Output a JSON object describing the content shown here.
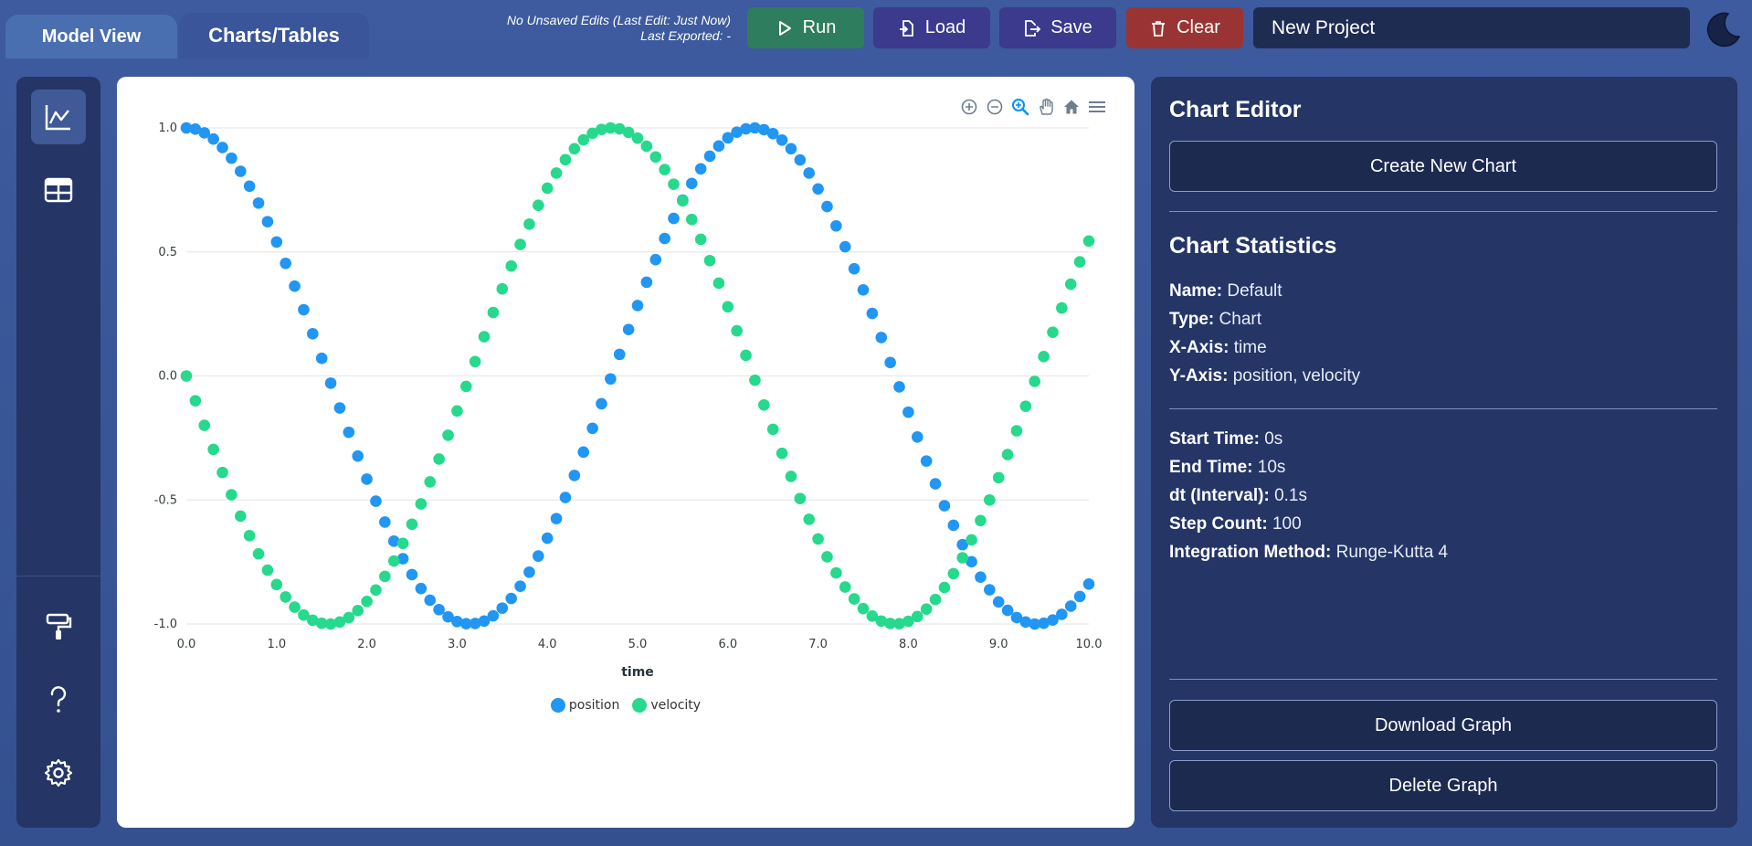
{
  "tabs": [
    {
      "label": "Model View"
    },
    {
      "label": "Charts/Tables"
    }
  ],
  "edit_status": {
    "line1": "No Unsaved Edits (Last Edit: Just Now)",
    "line2": "Last Exported: -"
  },
  "toolbar": {
    "run_label": "Run",
    "load_label": "Load",
    "save_label": "Save",
    "clear_label": "Clear"
  },
  "project": {
    "name": "New Project"
  },
  "colors": {
    "position": "#2196f3",
    "velocity": "#26d98c",
    "run": "#2e7d5e",
    "load": "#3b3a8c",
    "save": "#3b3a8c",
    "clear": "#9a3434"
  },
  "sidebar_icons": [
    "chart-line-icon",
    "table-icon",
    "paint-roller-icon",
    "help-icon",
    "gear-icon"
  ],
  "chart_toolbar_icons": [
    "zoom-in-icon",
    "zoom-out-icon",
    "zoom-select-icon",
    "pan-icon",
    "reset-home-icon",
    "menu-icon"
  ],
  "chart_data": {
    "type": "scatter",
    "title": "",
    "xlabel": "time",
    "ylabel": "",
    "xlim": [
      0,
      10
    ],
    "ylim": [
      -1,
      1
    ],
    "x_ticks": [
      "0.0",
      "1.0",
      "2.0",
      "3.0",
      "4.0",
      "5.0",
      "6.0",
      "7.0",
      "8.0",
      "9.0",
      "10.0"
    ],
    "y_ticks": [
      "1.0",
      "0.5",
      "0.0",
      "-0.5",
      "-1.0"
    ],
    "grid": "horizontal",
    "legend": "bottom-center",
    "x": [
      0.0,
      0.1,
      0.2,
      0.3,
      0.4,
      0.5,
      0.6,
      0.7,
      0.8,
      0.9,
      1.0,
      1.1,
      1.2,
      1.3,
      1.4,
      1.5,
      1.6,
      1.7,
      1.8,
      1.9,
      2.0,
      2.1,
      2.2,
      2.3,
      2.4,
      2.5,
      2.6,
      2.7,
      2.8,
      2.9,
      3.0,
      3.1,
      3.2,
      3.3,
      3.4,
      3.5,
      3.6,
      3.7,
      3.8,
      3.9,
      4.0,
      4.1,
      4.2,
      4.3,
      4.4,
      4.5,
      4.6,
      4.7,
      4.8,
      4.9,
      5.0,
      5.1,
      5.2,
      5.3,
      5.4,
      5.5,
      5.6,
      5.7,
      5.8,
      5.9,
      6.0,
      6.1,
      6.2,
      6.3,
      6.4,
      6.5,
      6.6,
      6.7,
      6.8,
      6.9,
      7.0,
      7.1,
      7.2,
      7.3,
      7.4,
      7.5,
      7.6,
      7.7,
      7.8,
      7.9,
      8.0,
      8.1,
      8.2,
      8.3,
      8.4,
      8.5,
      8.6,
      8.7,
      8.8,
      8.9,
      9.0,
      9.1,
      9.2,
      9.3,
      9.4,
      9.5,
      9.6,
      9.7,
      9.8,
      9.9,
      10.0
    ],
    "series": [
      {
        "name": "position",
        "values": [
          1.0,
          0.995,
          0.98,
          0.955,
          0.921,
          0.878,
          0.825,
          0.765,
          0.697,
          0.622,
          0.54,
          0.454,
          0.362,
          0.267,
          0.17,
          0.071,
          -0.029,
          -0.129,
          -0.227,
          -0.323,
          -0.416,
          -0.505,
          -0.589,
          -0.666,
          -0.737,
          -0.801,
          -0.857,
          -0.904,
          -0.942,
          -0.971,
          -0.99,
          -0.999,
          -0.998,
          -0.988,
          -0.967,
          -0.936,
          -0.897,
          -0.848,
          -0.791,
          -0.726,
          -0.654,
          -0.575,
          -0.49,
          -0.401,
          -0.307,
          -0.211,
          -0.112,
          -0.012,
          0.087,
          0.187,
          0.284,
          0.378,
          0.469,
          0.554,
          0.635,
          0.709,
          0.776,
          0.835,
          0.886,
          0.927,
          0.96,
          0.983,
          0.996,
          1.0,
          0.993,
          0.977,
          0.951,
          0.916,
          0.871,
          0.818,
          0.754,
          0.683,
          0.605,
          0.521,
          0.432,
          0.347,
          0.252,
          0.155,
          0.054,
          -0.044,
          -0.146,
          -0.246,
          -0.343,
          -0.435,
          -0.523,
          -0.602,
          -0.68,
          -0.749,
          -0.811,
          -0.862,
          -0.911,
          -0.945,
          -0.974,
          -0.992,
          -1.0,
          -0.997,
          -0.984,
          -0.961,
          -0.928,
          -0.889,
          -0.839
        ]
      },
      {
        "name": "velocity",
        "values": [
          0.0,
          -0.1,
          -0.199,
          -0.296,
          -0.389,
          -0.479,
          -0.565,
          -0.644,
          -0.717,
          -0.783,
          -0.841,
          -0.891,
          -0.932,
          -0.964,
          -0.985,
          -0.997,
          -1.0,
          -0.992,
          -0.974,
          -0.946,
          -0.909,
          -0.863,
          -0.808,
          -0.746,
          -0.675,
          -0.598,
          -0.516,
          -0.427,
          -0.335,
          -0.239,
          -0.141,
          -0.042,
          0.058,
          0.158,
          0.256,
          0.351,
          0.443,
          0.53,
          0.612,
          0.688,
          0.757,
          0.818,
          0.872,
          0.916,
          0.952,
          0.978,
          0.994,
          1.0,
          0.996,
          0.982,
          0.959,
          0.926,
          0.883,
          0.832,
          0.773,
          0.706,
          0.631,
          0.551,
          0.465,
          0.374,
          0.279,
          0.182,
          0.083,
          -0.017,
          -0.117,
          -0.215,
          -0.312,
          -0.405,
          -0.494,
          -0.578,
          -0.657,
          -0.729,
          -0.794,
          -0.851,
          -0.899,
          -0.938,
          -0.968,
          -0.988,
          -0.998,
          -0.999,
          -0.989,
          -0.97,
          -0.94,
          -0.901,
          -0.853,
          -0.797,
          -0.733,
          -0.661,
          -0.583,
          -0.5,
          -0.41,
          -0.317,
          -0.221,
          -0.122,
          -0.022,
          0.078,
          0.176,
          0.274,
          0.37,
          0.46,
          0.544
        ]
      }
    ]
  },
  "editor": {
    "title": "Chart Editor",
    "create_label": "Create New Chart",
    "stats_title": "Chart Statistics",
    "name_key": "Name:",
    "name_val": "Default",
    "type_key": "Type:",
    "type_val": "Chart",
    "xaxis_key": "X-Axis:",
    "xaxis_val": "time",
    "yaxis_key": "Y-Axis:",
    "yaxis_val": "position, velocity",
    "start_key": "Start Time:",
    "start_val": "0s",
    "end_key": "End Time:",
    "end_val": "10s",
    "dt_key": "dt (Interval):",
    "dt_val": "0.1s",
    "steps_key": "Step Count:",
    "steps_val": "100",
    "method_key": "Integration Method:",
    "method_val": "Runge-Kutta 4",
    "download_label": "Download Graph",
    "delete_label": "Delete Graph"
  }
}
